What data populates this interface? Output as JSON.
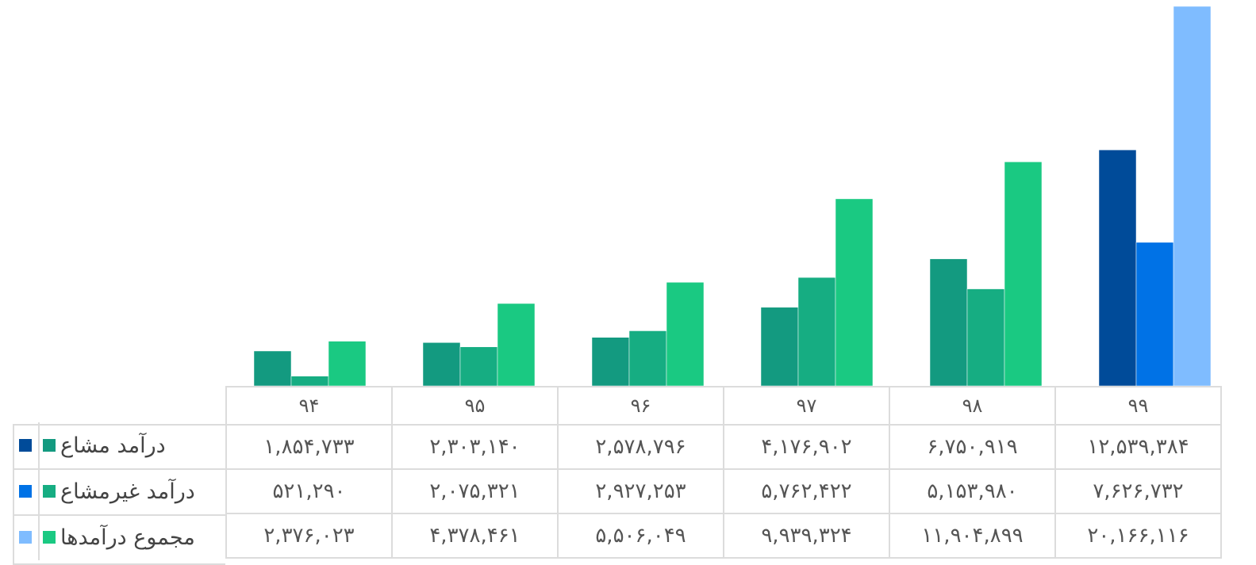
{
  "chart_data": {
    "type": "bar",
    "categories": [
      "۹۴",
      "۹۵",
      "۹۶",
      "۹۷",
      "۹۸",
      "۹۹"
    ],
    "series": [
      {
        "name": "درآمد مشاع",
        "values": [
          1854733,
          2303140,
          2578796,
          4176902,
          6750919,
          12539384
        ],
        "labels": [
          "۱,۸۵۴,۷۳۳",
          "۲,۳۰۳,۱۴۰",
          "۲,۵۷۸,۷۹۶",
          "۴,۱۷۶,۹۰۲",
          "۶,۷۵۰,۹۱۹",
          "۱۲,۵۳۹,۳۸۴"
        ],
        "colors": [
          "#139a80",
          "#139a80",
          "#139a80",
          "#139a80",
          "#139a80",
          "#004b99"
        ]
      },
      {
        "name": "درآمد غیرمشاع",
        "values": [
          521290,
          2075321,
          2927253,
          5762422,
          5153980,
          7626732
        ],
        "labels": [
          "۵۲۱,۲۹۰",
          "۲,۰۷۵,۳۲۱",
          "۲,۹۲۷,۲۵۳",
          "۵,۷۶۲,۴۲۲",
          "۵,۱۵۳,۹۸۰",
          "۷,۶۲۶,۷۳۲"
        ],
        "colors": [
          "#16ad82",
          "#16ad82",
          "#16ad82",
          "#16ad82",
          "#16ad82",
          "#0072e6"
        ]
      },
      {
        "name": "مجموع درآمدها",
        "values": [
          2376023,
          4378461,
          5506049,
          9939324,
          11904899,
          20166116
        ],
        "labels": [
          "۲,۳۷۶,۰۲۳",
          "۴,۳۷۸,۴۶۱",
          "۵,۵۰۶,۰۴۹",
          "۹,۹۳۹,۳۲۴",
          "۱۱,۹۰۴,۸۹۹",
          "۲۰,۱۶۶,۱۱۶"
        ],
        "colors": [
          "#1ac982",
          "#1ac982",
          "#1ac982",
          "#1ac982",
          "#1ac982",
          "#7fbcff"
        ]
      }
    ],
    "legend_keys": [
      {
        "dark": "#004b99",
        "light": "#139a80"
      },
      {
        "dark": "#0072e6",
        "light": "#16ad82"
      },
      {
        "dark": "#7fbcff",
        "light": "#1ac982"
      }
    ],
    "ylim": [
      0,
      20166116
    ],
    "grid": false,
    "legend": "data-table-left"
  }
}
